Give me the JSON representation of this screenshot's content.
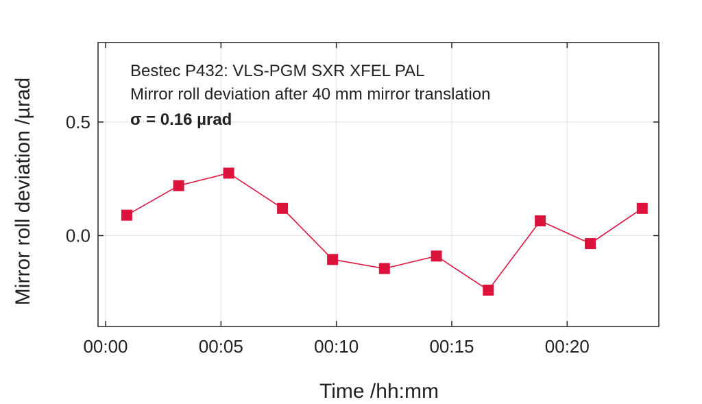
{
  "chart_data": {
    "type": "line",
    "xlabel": "Time /hh:mm",
    "ylabel": "Mirror roll deviation /µrad",
    "annotations": [
      "Bestec P432: VLS-PGM SXR XFEL PAL",
      "Mirror roll deviation after 40 mm mirror translation",
      "σ = 0.16 µrad"
    ],
    "xlim": [
      "00:00",
      "00:24"
    ],
    "ylim": [
      -0.4,
      0.85
    ],
    "x_ticks": [
      "00:00",
      "00:05",
      "00:10",
      "00:15",
      "00:20"
    ],
    "y_ticks": [
      "0.5",
      "0.0"
    ],
    "grid": true,
    "series": [
      {
        "color": "#dc143c",
        "marker": "square",
        "x": [
          "00:00:55",
          "00:03:10",
          "00:05:20",
          "00:07:40",
          "00:09:50",
          "00:12:05",
          "00:14:20",
          "00:16:35",
          "00:18:50",
          "00:21:00",
          "00:23:15"
        ],
        "y": [
          0.09,
          0.22,
          0.275,
          0.12,
          -0.105,
          -0.145,
          -0.09,
          -0.24,
          0.065,
          -0.035,
          0.12
        ]
      }
    ]
  }
}
